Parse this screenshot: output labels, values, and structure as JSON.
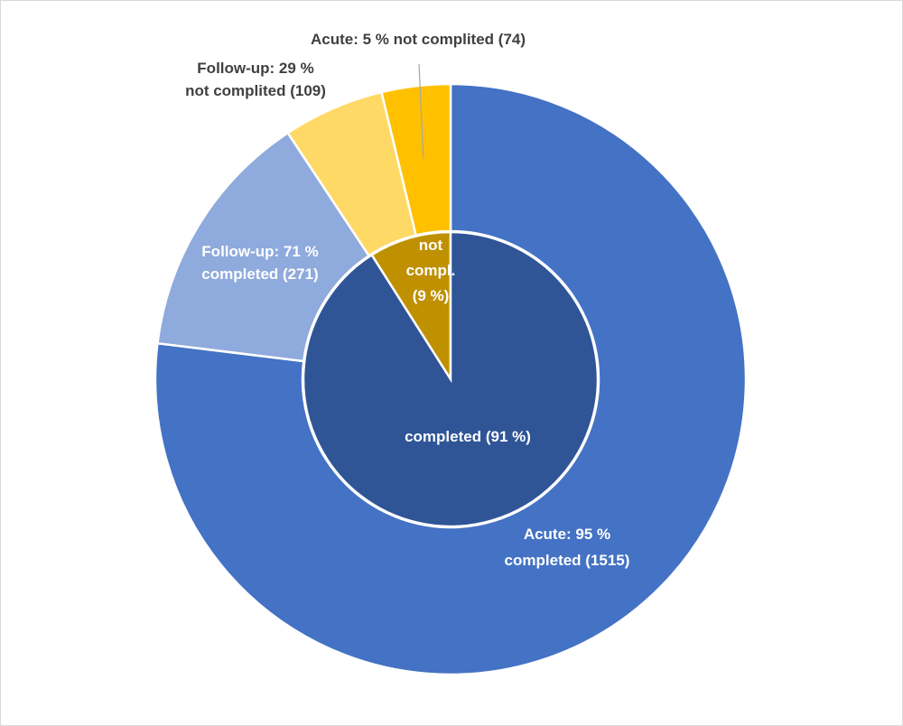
{
  "chart_data": {
    "type": "pie",
    "subtype": "sunburst-donut",
    "title": "",
    "inner_ring": {
      "slices": [
        {
          "key": "not_completed",
          "value": 9,
          "color": "#bf9000",
          "label_lines": [
            "not",
            "compl.",
            "(9 %)"
          ],
          "label_color": "#ffffff"
        },
        {
          "key": "completed",
          "value": 91,
          "color": "#2f5597",
          "label_lines": [
            "completed (91 %)"
          ],
          "label_color": "#ffffff"
        }
      ]
    },
    "outer_ring": {
      "slices": [
        {
          "key": "acute_completed",
          "value": 1515,
          "color": "#4472c4",
          "label_lines": [
            "Acute: 95 %",
            "completed (1515)"
          ],
          "label_color": "#ffffff"
        },
        {
          "key": "followup_completed",
          "value": 271,
          "color": "#8faadc",
          "label_lines": [
            "Follow-up: 71 %",
            "completed (271)"
          ],
          "label_color": "#ffffff"
        },
        {
          "key": "followup_not_completed",
          "value": 109,
          "color": "#ffd966",
          "label_lines": [
            "Follow-up: 29 %",
            "not complited (109)"
          ],
          "label_color": "#404040"
        },
        {
          "key": "acute_not_completed",
          "value": 74,
          "color": "#ffc000",
          "label_lines": [
            "Acute: 5 % not complited (74)"
          ],
          "label_color": "#404040"
        }
      ]
    },
    "legend": "none"
  }
}
